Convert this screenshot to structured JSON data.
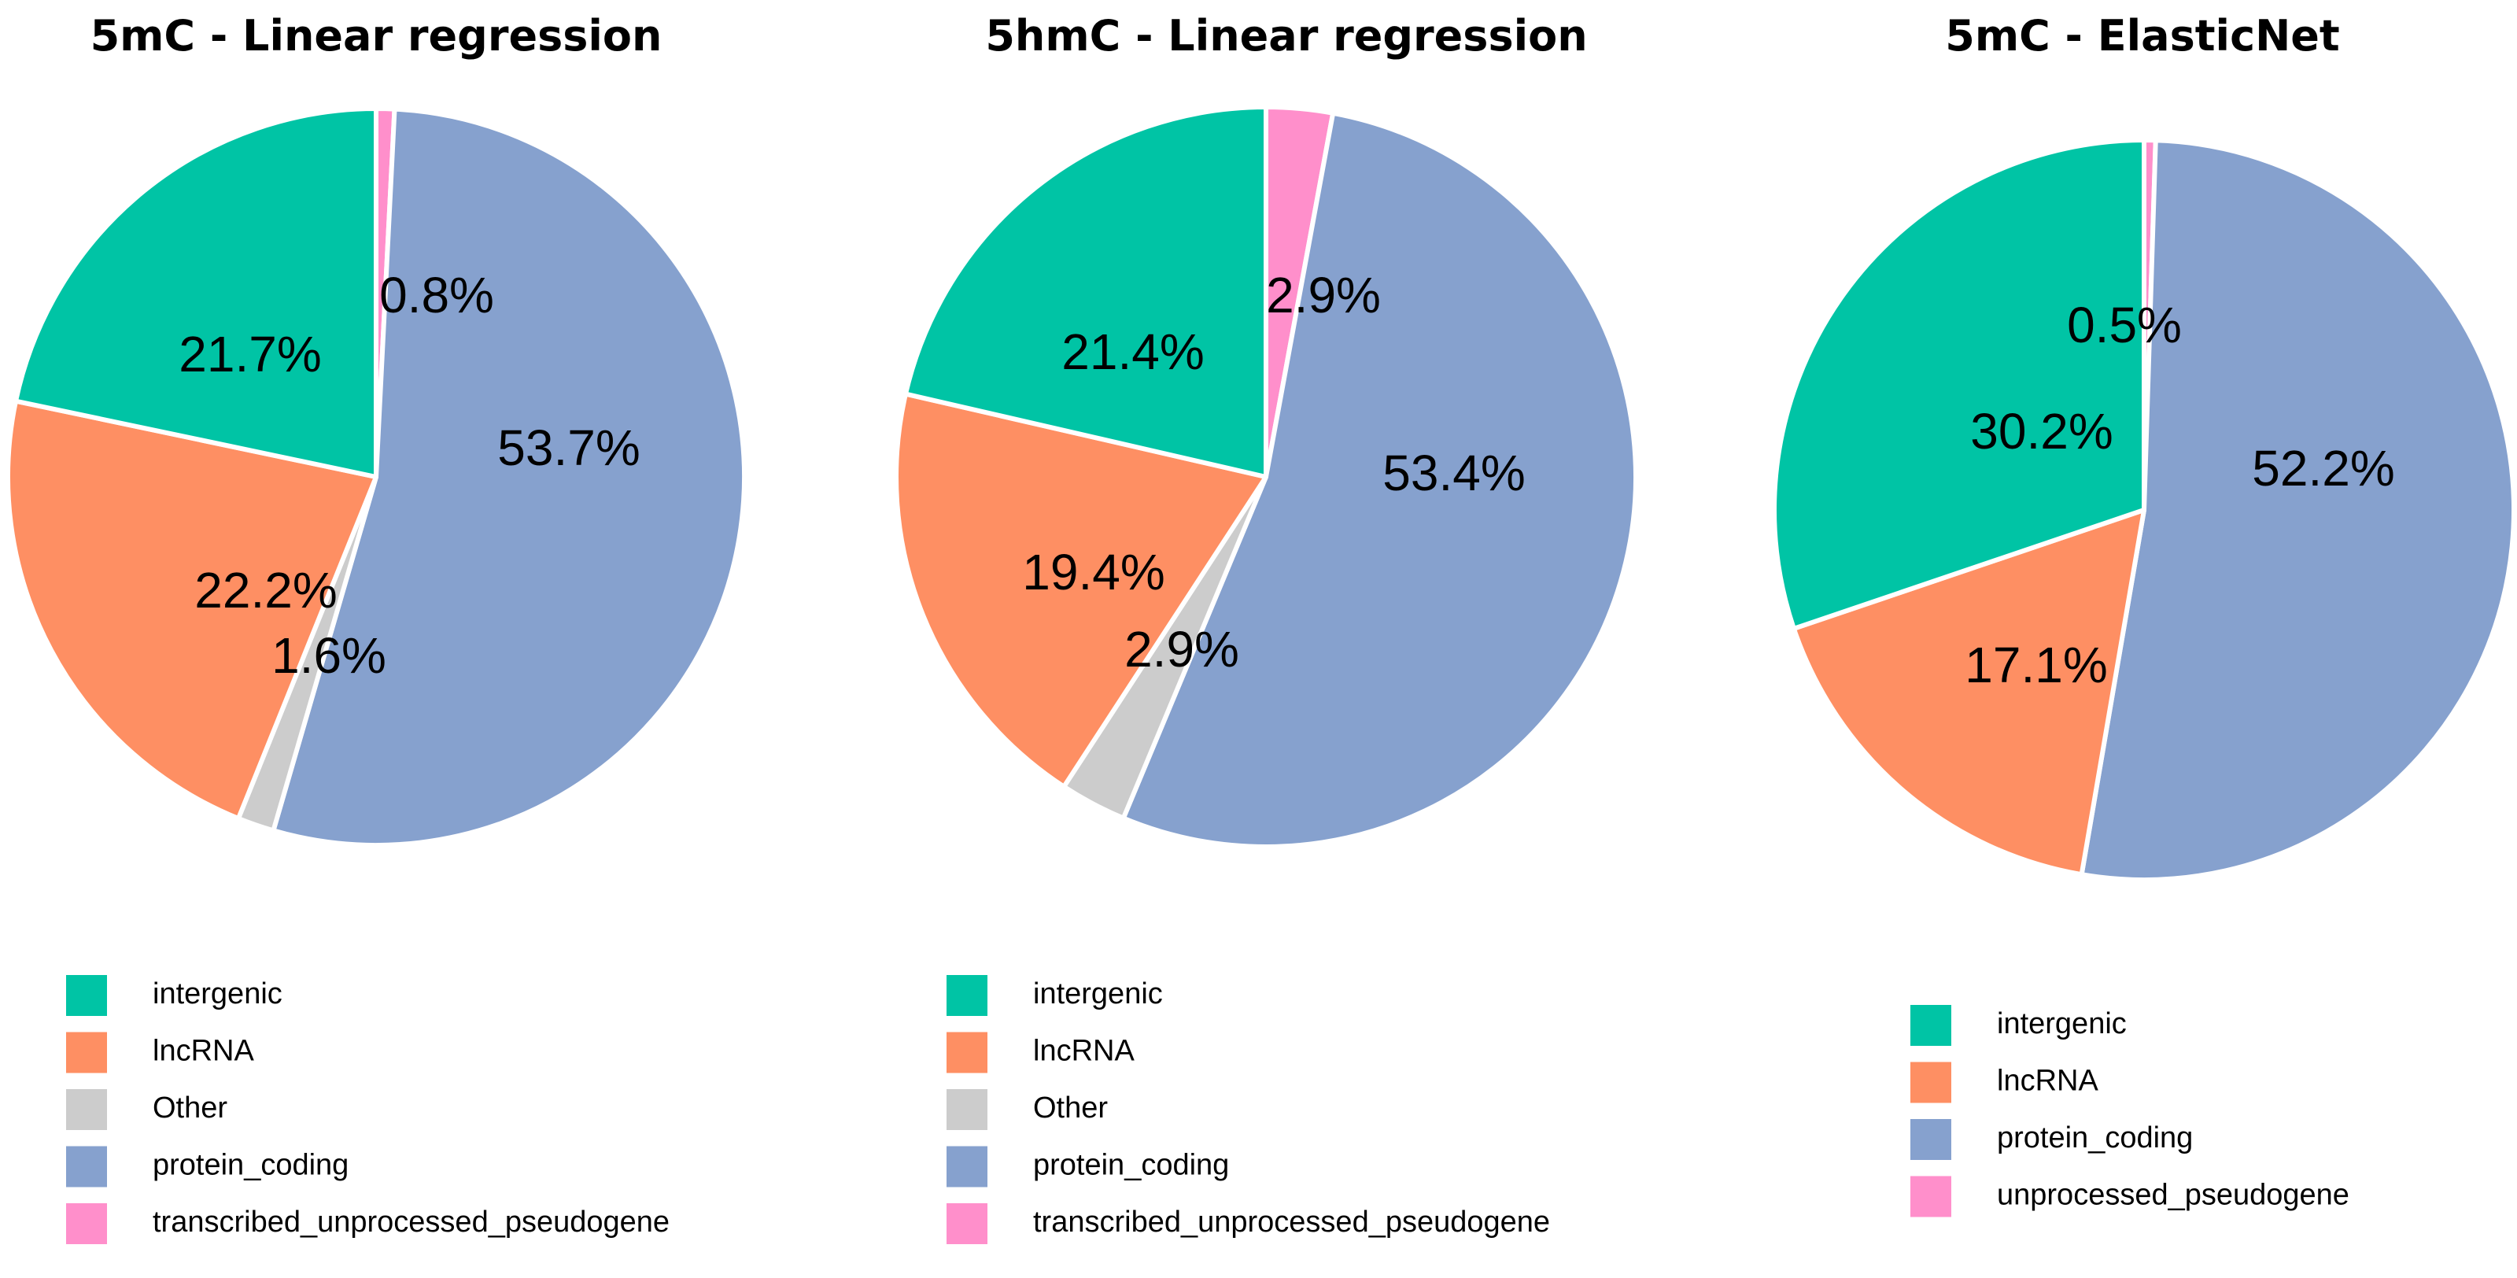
{
  "chart_data": [
    {
      "type": "pie",
      "title": "5mC - Linear regression",
      "slices": [
        {
          "label": "transcribed_unprocessed_pseudogene",
          "value": 0.8,
          "pct_label": "0.8%",
          "color": "#ff8fcb"
        },
        {
          "label": "protein_coding",
          "value": 53.7,
          "pct_label": "53.7%",
          "color": "#86a1ce"
        },
        {
          "label": "Other",
          "value": 1.6,
          "pct_label": "1.6%",
          "color": "#cccccc"
        },
        {
          "label": "lncRNA",
          "value": 22.2,
          "pct_label": "22.2%",
          "color": "#fe8f63"
        },
        {
          "label": "intergenic",
          "value": 21.7,
          "pct_label": "21.7%",
          "color": "#00c4a5"
        }
      ],
      "legend": [
        "intergenic",
        "lncRNA",
        "Other",
        "protein_coding",
        "transcribed_unprocessed_pseudogene"
      ]
    },
    {
      "type": "pie",
      "title": "5hmC - Linear regression",
      "slices": [
        {
          "label": "transcribed_unprocessed_pseudogene",
          "value": 2.9,
          "pct_label": "2.9%",
          "color": "#ff8fcb"
        },
        {
          "label": "protein_coding",
          "value": 53.4,
          "pct_label": "53.4%",
          "color": "#86a1ce"
        },
        {
          "label": "Other",
          "value": 2.9,
          "pct_label": "2.9%",
          "color": "#cccccc"
        },
        {
          "label": "lncRNA",
          "value": 19.4,
          "pct_label": "19.4%",
          "color": "#fe8f63"
        },
        {
          "label": "intergenic",
          "value": 21.4,
          "pct_label": "21.4%",
          "color": "#00c4a5"
        }
      ],
      "legend": [
        "intergenic",
        "lncRNA",
        "Other",
        "protein_coding",
        "transcribed_unprocessed_pseudogene"
      ]
    },
    {
      "type": "pie",
      "title": "5mC - ElasticNet",
      "slices": [
        {
          "label": "unprocessed_pseudogene",
          "value": 0.5,
          "pct_label": "0.5%",
          "color": "#ff8fcb"
        },
        {
          "label": "protein_coding",
          "value": 52.2,
          "pct_label": "52.2%",
          "color": "#86a1ce"
        },
        {
          "label": "lncRNA",
          "value": 17.1,
          "pct_label": "17.1%",
          "color": "#fe8f63"
        },
        {
          "label": "intergenic",
          "value": 30.2,
          "pct_label": "30.2%",
          "color": "#00c4a5"
        }
      ],
      "legend": [
        "intergenic",
        "lncRNA",
        "protein_coding",
        "unprocessed_pseudogene"
      ]
    }
  ],
  "legend_colors": {
    "intergenic": "#00c4a5",
    "lncRNA": "#fe8f63",
    "Other": "#cccccc",
    "protein_coding": "#86a1ce",
    "transcribed_unprocessed_pseudogene": "#ff8fcb",
    "unprocessed_pseudogene": "#ff8fcb"
  }
}
